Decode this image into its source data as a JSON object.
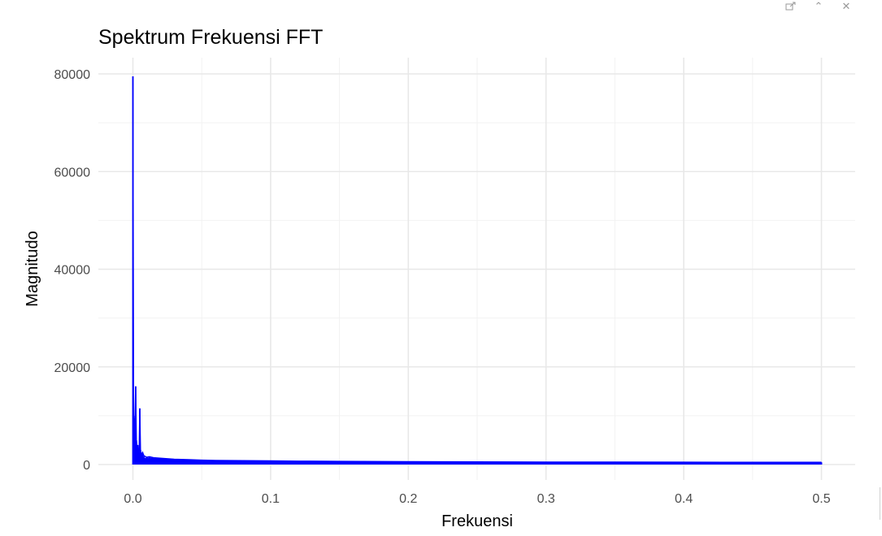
{
  "toolbar": {
    "export_icon": "export-icon",
    "collapse_icon": "collapse-icon",
    "close_icon": "close-icon",
    "collapse_glyph": "⌃",
    "close_glyph": "✕"
  },
  "chart_data": {
    "type": "line",
    "title": "Spektrum Frekuensi FFT",
    "xlabel": "Frekuensi",
    "ylabel": "Magnitudo",
    "xlim": [
      0,
      0.5
    ],
    "ylim": [
      0,
      80000
    ],
    "x_ticks": [
      "0.0",
      "0.1",
      "0.2",
      "0.3",
      "0.4",
      "0.5"
    ],
    "y_ticks": [
      "0",
      "20000",
      "40000",
      "60000",
      "80000"
    ],
    "grid": true,
    "legend": "none",
    "line_color": "#0000ff",
    "series": [
      {
        "x": [
          0.0,
          0.0005,
          0.001,
          0.0015,
          0.002,
          0.0025,
          0.003,
          0.0035,
          0.004,
          0.0045,
          0.005,
          0.0055,
          0.006,
          0.007,
          0.008,
          0.01,
          0.012,
          0.015,
          0.02,
          0.025,
          0.03,
          0.04,
          0.05,
          0.06,
          0.08,
          0.1,
          0.12,
          0.15,
          0.2,
          0.25,
          0.3,
          0.35,
          0.4,
          0.45,
          0.5
        ],
        "values": [
          79500,
          10000,
          7000,
          9500,
          16000,
          5000,
          3500,
          4000,
          2500,
          2200,
          11500,
          3000,
          2000,
          2500,
          1800,
          1500,
          1600,
          1400,
          1300,
          1200,
          1100,
          1000,
          900,
          850,
          800,
          750,
          700,
          650,
          600,
          550,
          500,
          500,
          480,
          470,
          460
        ]
      }
    ]
  }
}
